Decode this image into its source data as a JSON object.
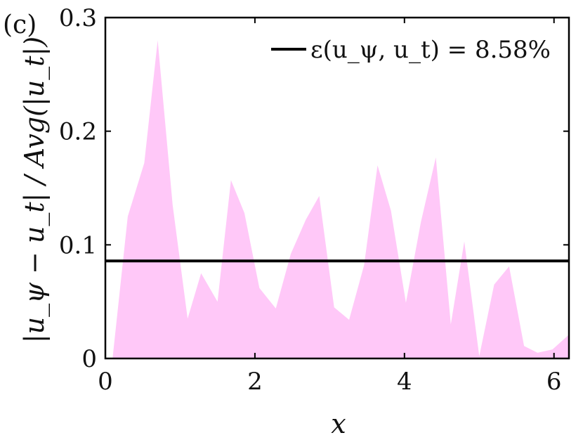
{
  "panel_label": "(c)",
  "chart_data": {
    "type": "area",
    "title": "",
    "xlabel": "x",
    "ylabel": "|u_ψ − u_t| / Avg(|u_t|)",
    "xlim": [
      0,
      6.2
    ],
    "ylim": [
      0,
      0.3
    ],
    "x_ticks": [
      0,
      2,
      4,
      6
    ],
    "x_tick_labels": [
      "0",
      "2",
      "4",
      "6"
    ],
    "y_ticks": [
      0,
      0.1,
      0.2,
      0.3
    ],
    "y_tick_labels": [
      "0",
      "0.1",
      "0.2",
      "0.3"
    ],
    "grid": false,
    "legend_position": "top-right",
    "series": [
      {
        "type": "area",
        "color": "#ffc8f8",
        "x": [
          0.1,
          0.3,
          0.52,
          0.7,
          0.9,
          1.1,
          1.28,
          1.5,
          1.68,
          1.86,
          2.06,
          2.28,
          2.48,
          2.68,
          2.86,
          3.06,
          3.26,
          3.46,
          3.64,
          3.82,
          4.02,
          4.22,
          4.42,
          4.62,
          4.8,
          5.0,
          5.2,
          5.4,
          5.6,
          5.78,
          5.98,
          6.2
        ],
        "y": [
          0.002,
          0.125,
          0.172,
          0.28,
          0.135,
          0.035,
          0.075,
          0.05,
          0.157,
          0.128,
          0.062,
          0.044,
          0.092,
          0.122,
          0.143,
          0.045,
          0.034,
          0.082,
          0.17,
          0.13,
          0.049,
          0.12,
          0.177,
          0.03,
          0.103,
          0.002,
          0.065,
          0.081,
          0.011,
          0.005,
          0.008,
          0.021
        ]
      },
      {
        "type": "hline",
        "name": "ε(u_ψ, u_t) = 8.58%",
        "color": "#000000",
        "y": 0.0858
      }
    ]
  }
}
